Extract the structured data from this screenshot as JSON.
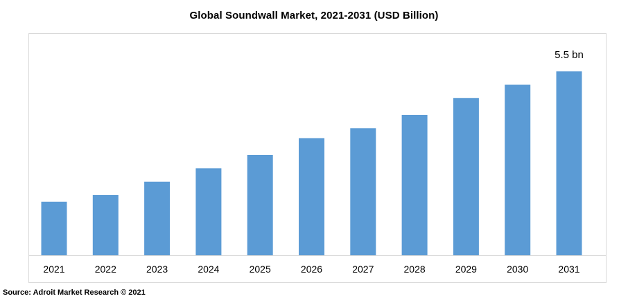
{
  "chart_data": {
    "type": "bar",
    "title": "Global Soundwall Market, 2021-2031 (USD Billion)",
    "xlabel": "",
    "ylabel": "",
    "categories": [
      "2021",
      "2022",
      "2023",
      "2024",
      "2025",
      "2026",
      "2027",
      "2028",
      "2029",
      "2030",
      "2031"
    ],
    "values": [
      1.6,
      1.8,
      2.2,
      2.6,
      3.0,
      3.5,
      3.8,
      4.2,
      4.7,
      5.1,
      5.5
    ],
    "ylim": [
      0,
      6.0
    ],
    "grid": false,
    "legend": "none",
    "bar_color": "#5b9bd5",
    "annotations": [
      {
        "category": "2031",
        "text": "5.5 bn"
      }
    ]
  },
  "source": "Source: Adroit Market Research © 2021"
}
